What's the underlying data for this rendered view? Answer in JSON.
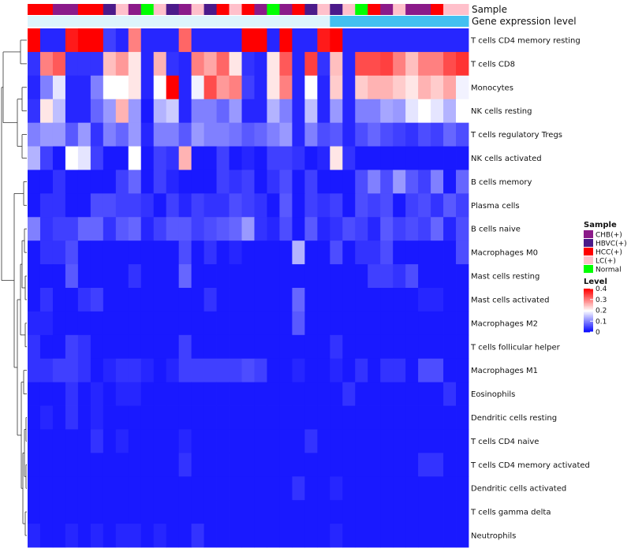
{
  "chart_data": {
    "type": "heatmap",
    "annotation_tracks": [
      "Sample",
      "Gene expression level"
    ],
    "rows": [
      "T cells CD4 memory resting",
      "T cells CD8",
      "Monocytes",
      "NK cells resting",
      "T cells regulatory  Tregs",
      "NK cells activated",
      "B cells memory",
      "Plasma cells",
      "B cells naive",
      "Macrophages M0",
      "Mast cells resting",
      "Mast cells activated",
      "Macrophages M2",
      "T cells follicular helper",
      "Macrophages M1",
      "Eosinophils",
      "Dendritic cells resting",
      "T cells CD4 naive",
      "T cells CD4 memory activated",
      "Dendritic cells activated",
      "T cells gamma delta",
      "Neutrophils"
    ],
    "samples": [
      "HCC(+)",
      "HCC(+)",
      "CHB(+)",
      "CHB(+)",
      "HCC(+)",
      "HCC(+)",
      "HBVC(+)",
      "LC(+)",
      "CHB(+)",
      "Normal",
      "LC(+)",
      "HBVC(+)",
      "CHB(+)",
      "LC(+)",
      "HBVC(+)",
      "HCC(+)",
      "LC(+)",
      "HCC(+)",
      "CHB(+)",
      "Normal",
      "CHB(+)",
      "HCC(+)",
      "HBVC(+)",
      "LC(+)",
      "HBVC(+)",
      "LC(+)",
      "Normal",
      "HCC(+)",
      "CHB(+)",
      "LC(+)",
      "CHB(+)",
      "CHB(+)",
      "HCC(+)",
      "LC(+)",
      "LC(+)"
    ],
    "expression_level_track": [
      0.02,
      0.02,
      0.02,
      0.02,
      0.02,
      0.02,
      0.02,
      0.02,
      0.02,
      0.02,
      0.02,
      0.02,
      0.02,
      0.02,
      0.02,
      0.02,
      0.02,
      0.02,
      0.02,
      0.02,
      0.02,
      0.02,
      0.02,
      0.02,
      0.25,
      0.25,
      0.25,
      0.25,
      0.25,
      0.25,
      0.25,
      0.25,
      0.25,
      0.25,
      0.25
    ],
    "values": [
      [
        0.4,
        0.03,
        0.03,
        0.38,
        0.4,
        0.4,
        0.05,
        0.03,
        0.3,
        0.03,
        0.03,
        0.03,
        0.32,
        0.03,
        0.03,
        0.03,
        0.03,
        0.4,
        0.4,
        0.03,
        0.4,
        0.03,
        0.03,
        0.38,
        0.4,
        0.03,
        0.03,
        0.03,
        0.03,
        0.03,
        0.03,
        0.03,
        0.03,
        0.03,
        0.03
      ],
      [
        0.04,
        0.3,
        0.33,
        0.04,
        0.04,
        0.04,
        0.25,
        0.28,
        0.22,
        0.03,
        0.26,
        0.04,
        0.03,
        0.3,
        0.27,
        0.32,
        0.22,
        0.04,
        0.03,
        0.22,
        0.33,
        0.03,
        0.35,
        0.04,
        0.25,
        0.03,
        0.34,
        0.34,
        0.35,
        0.3,
        0.25,
        0.3,
        0.3,
        0.34,
        0.36
      ],
      [
        0.03,
        0.1,
        0.18,
        0.03,
        0.03,
        0.1,
        0.2,
        0.2,
        0.22,
        0.03,
        0.2,
        0.4,
        0.03,
        0.19,
        0.34,
        0.28,
        0.3,
        0.05,
        0.03,
        0.22,
        0.3,
        0.03,
        0.2,
        0.03,
        0.24,
        0.03,
        0.24,
        0.26,
        0.26,
        0.24,
        0.22,
        0.26,
        0.24,
        0.27,
        0.19
      ],
      [
        0.04,
        0.22,
        0.15,
        0.03,
        0.03,
        0.08,
        0.12,
        0.26,
        0.12,
        0.02,
        0.14,
        0.16,
        0.03,
        0.1,
        0.1,
        0.08,
        0.12,
        0.03,
        0.03,
        0.14,
        0.1,
        0.03,
        0.15,
        0.03,
        0.12,
        0.03,
        0.1,
        0.1,
        0.13,
        0.12,
        0.18,
        0.2,
        0.18,
        0.14,
        0.2
      ],
      [
        0.1,
        0.12,
        0.12,
        0.07,
        0.12,
        0.04,
        0.1,
        0.08,
        0.12,
        0.03,
        0.1,
        0.1,
        0.07,
        0.12,
        0.1,
        0.1,
        0.09,
        0.07,
        0.08,
        0.1,
        0.12,
        0.03,
        0.1,
        0.06,
        0.07,
        0.03,
        0.06,
        0.08,
        0.06,
        0.05,
        0.04,
        0.06,
        0.05,
        0.08,
        0.06
      ],
      [
        0.14,
        0.05,
        0.02,
        0.2,
        0.18,
        0.05,
        0.02,
        0.02,
        0.2,
        0.02,
        0.05,
        0.04,
        0.26,
        0.02,
        0.02,
        0.05,
        0.02,
        0.03,
        0.02,
        0.05,
        0.05,
        0.04,
        0.02,
        0.03,
        0.22,
        0.04,
        0.02,
        0.02,
        0.02,
        0.02,
        0.02,
        0.02,
        0.02,
        0.02,
        0.02
      ],
      [
        0.02,
        0.02,
        0.04,
        0.02,
        0.02,
        0.02,
        0.02,
        0.05,
        0.08,
        0.02,
        0.05,
        0.03,
        0.02,
        0.02,
        0.02,
        0.05,
        0.04,
        0.05,
        0.02,
        0.04,
        0.06,
        0.02,
        0.05,
        0.02,
        0.02,
        0.02,
        0.06,
        0.1,
        0.06,
        0.12,
        0.07,
        0.05,
        0.1,
        0.02,
        0.08
      ],
      [
        0.02,
        0.04,
        0.04,
        0.02,
        0.02,
        0.06,
        0.06,
        0.05,
        0.05,
        0.04,
        0.02,
        0.05,
        0.03,
        0.05,
        0.04,
        0.04,
        0.06,
        0.05,
        0.04,
        0.02,
        0.07,
        0.02,
        0.05,
        0.04,
        0.05,
        0.02,
        0.06,
        0.05,
        0.06,
        0.02,
        0.05,
        0.06,
        0.04,
        0.07,
        0.05
      ],
      [
        0.1,
        0.04,
        0.05,
        0.05,
        0.08,
        0.08,
        0.04,
        0.07,
        0.08,
        0.03,
        0.05,
        0.07,
        0.07,
        0.05,
        0.06,
        0.07,
        0.08,
        0.12,
        0.04,
        0.03,
        0.06,
        0.02,
        0.07,
        0.03,
        0.04,
        0.06,
        0.05,
        0.03,
        0.07,
        0.05,
        0.06,
        0.05,
        0.08,
        0.03,
        0.06
      ],
      [
        0.02,
        0.04,
        0.04,
        0.06,
        0.02,
        0.02,
        0.02,
        0.02,
        0.02,
        0.02,
        0.02,
        0.02,
        0.06,
        0.02,
        0.04,
        0.02,
        0.03,
        0.02,
        0.02,
        0.02,
        0.02,
        0.14,
        0.02,
        0.02,
        0.06,
        0.02,
        0.04,
        0.04,
        0.06,
        0.02,
        0.02,
        0.02,
        0.02,
        0.02,
        0.06
      ],
      [
        0.02,
        0.02,
        0.02,
        0.07,
        0.02,
        0.02,
        0.02,
        0.02,
        0.04,
        0.02,
        0.02,
        0.02,
        0.08,
        0.02,
        0.02,
        0.02,
        0.02,
        0.02,
        0.02,
        0.02,
        0.02,
        0.02,
        0.02,
        0.02,
        0.02,
        0.02,
        0.02,
        0.05,
        0.05,
        0.04,
        0.06,
        0.02,
        0.02,
        0.02,
        0.02
      ],
      [
        0.02,
        0.04,
        0.02,
        0.02,
        0.04,
        0.05,
        0.02,
        0.02,
        0.02,
        0.02,
        0.02,
        0.02,
        0.02,
        0.02,
        0.04,
        0.02,
        0.02,
        0.02,
        0.02,
        0.02,
        0.02,
        0.08,
        0.02,
        0.02,
        0.02,
        0.02,
        0.02,
        0.02,
        0.02,
        0.02,
        0.02,
        0.03,
        0.03,
        0.02,
        0.02
      ],
      [
        0.03,
        0.03,
        0.02,
        0.02,
        0.02,
        0.02,
        0.02,
        0.02,
        0.02,
        0.02,
        0.02,
        0.02,
        0.02,
        0.02,
        0.02,
        0.02,
        0.02,
        0.02,
        0.02,
        0.02,
        0.02,
        0.07,
        0.02,
        0.02,
        0.02,
        0.02,
        0.02,
        0.02,
        0.02,
        0.02,
        0.02,
        0.02,
        0.02,
        0.02,
        0.02
      ],
      [
        0.04,
        0.02,
        0.02,
        0.05,
        0.04,
        0.02,
        0.02,
        0.02,
        0.02,
        0.02,
        0.02,
        0.02,
        0.05,
        0.02,
        0.02,
        0.02,
        0.02,
        0.02,
        0.02,
        0.02,
        0.02,
        0.02,
        0.02,
        0.02,
        0.04,
        0.02,
        0.02,
        0.02,
        0.02,
        0.02,
        0.02,
        0.02,
        0.02,
        0.02,
        0.02
      ],
      [
        0.04,
        0.04,
        0.05,
        0.05,
        0.04,
        0.02,
        0.03,
        0.04,
        0.04,
        0.03,
        0.02,
        0.03,
        0.05,
        0.05,
        0.05,
        0.05,
        0.05,
        0.06,
        0.05,
        0.02,
        0.02,
        0.03,
        0.02,
        0.02,
        0.03,
        0.02,
        0.04,
        0.02,
        0.04,
        0.04,
        0.02,
        0.06,
        0.06,
        0.02,
        0.02
      ],
      [
        0.02,
        0.02,
        0.02,
        0.04,
        0.02,
        0.03,
        0.02,
        0.03,
        0.03,
        0.02,
        0.02,
        0.02,
        0.02,
        0.02,
        0.02,
        0.02,
        0.02,
        0.02,
        0.02,
        0.02,
        0.02,
        0.02,
        0.02,
        0.02,
        0.02,
        0.04,
        0.02,
        0.02,
        0.02,
        0.02,
        0.02,
        0.02,
        0.02,
        0.04,
        0.02
      ],
      [
        0.02,
        0.03,
        0.02,
        0.04,
        0.02,
        0.03,
        0.02,
        0.02,
        0.02,
        0.02,
        0.02,
        0.02,
        0.02,
        0.02,
        0.02,
        0.02,
        0.02,
        0.02,
        0.02,
        0.02,
        0.02,
        0.02,
        0.02,
        0.02,
        0.02,
        0.02,
        0.02,
        0.02,
        0.02,
        0.02,
        0.02,
        0.02,
        0.02,
        0.02,
        0.02
      ],
      [
        0.02,
        0.02,
        0.02,
        0.02,
        0.02,
        0.04,
        0.02,
        0.03,
        0.02,
        0.02,
        0.02,
        0.02,
        0.03,
        0.02,
        0.02,
        0.02,
        0.02,
        0.02,
        0.02,
        0.02,
        0.02,
        0.02,
        0.04,
        0.02,
        0.02,
        0.02,
        0.02,
        0.02,
        0.02,
        0.02,
        0.02,
        0.02,
        0.02,
        0.02,
        0.02
      ],
      [
        0.02,
        0.02,
        0.02,
        0.02,
        0.02,
        0.02,
        0.02,
        0.02,
        0.02,
        0.02,
        0.02,
        0.02,
        0.04,
        0.02,
        0.02,
        0.02,
        0.02,
        0.02,
        0.02,
        0.02,
        0.02,
        0.02,
        0.02,
        0.02,
        0.02,
        0.02,
        0.02,
        0.02,
        0.02,
        0.02,
        0.02,
        0.04,
        0.04,
        0.02,
        0.02
      ],
      [
        0.02,
        0.02,
        0.02,
        0.02,
        0.02,
        0.02,
        0.02,
        0.02,
        0.02,
        0.02,
        0.02,
        0.02,
        0.02,
        0.02,
        0.02,
        0.02,
        0.02,
        0.02,
        0.02,
        0.02,
        0.02,
        0.04,
        0.02,
        0.02,
        0.03,
        0.02,
        0.02,
        0.02,
        0.02,
        0.02,
        0.02,
        0.02,
        0.02,
        0.02,
        0.02
      ],
      [
        0.02,
        0.02,
        0.02,
        0.02,
        0.02,
        0.02,
        0.02,
        0.02,
        0.02,
        0.02,
        0.02,
        0.02,
        0.02,
        0.02,
        0.02,
        0.02,
        0.02,
        0.02,
        0.02,
        0.02,
        0.02,
        0.02,
        0.02,
        0.02,
        0.02,
        0.02,
        0.02,
        0.02,
        0.02,
        0.02,
        0.02,
        0.02,
        0.02,
        0.02,
        0.02
      ],
      [
        0.03,
        0.02,
        0.02,
        0.03,
        0.02,
        0.03,
        0.02,
        0.03,
        0.03,
        0.02,
        0.03,
        0.02,
        0.02,
        0.04,
        0.02,
        0.02,
        0.02,
        0.02,
        0.02,
        0.02,
        0.02,
        0.02,
        0.02,
        0.02,
        0.03,
        0.02,
        0.02,
        0.02,
        0.02,
        0.02,
        0.02,
        0.02,
        0.02,
        0.02,
        0.02
      ]
    ],
    "sample_legend": {
      "title": "Sample",
      "entries": [
        {
          "label": "CHB(+)",
          "color": "#8B1A89"
        },
        {
          "label": "HBVC(+)",
          "color": "#4B1A8A"
        },
        {
          "label": "HCC(+)",
          "color": "#FF0000"
        },
        {
          "label": "LC(+)",
          "color": "#FFC0CB"
        },
        {
          "label": "Normal",
          "color": "#00FF00"
        }
      ]
    },
    "level_legend": {
      "title": "Level",
      "ticks": [
        "0.4",
        "0.3",
        "0.2",
        "0.1",
        "0"
      ],
      "range": [
        0,
        0.4
      ]
    },
    "color_scale": {
      "low": "#0000FF",
      "mid": "#FFFFFF",
      "high": "#FF0000",
      "mid_value": 0.2
    }
  }
}
